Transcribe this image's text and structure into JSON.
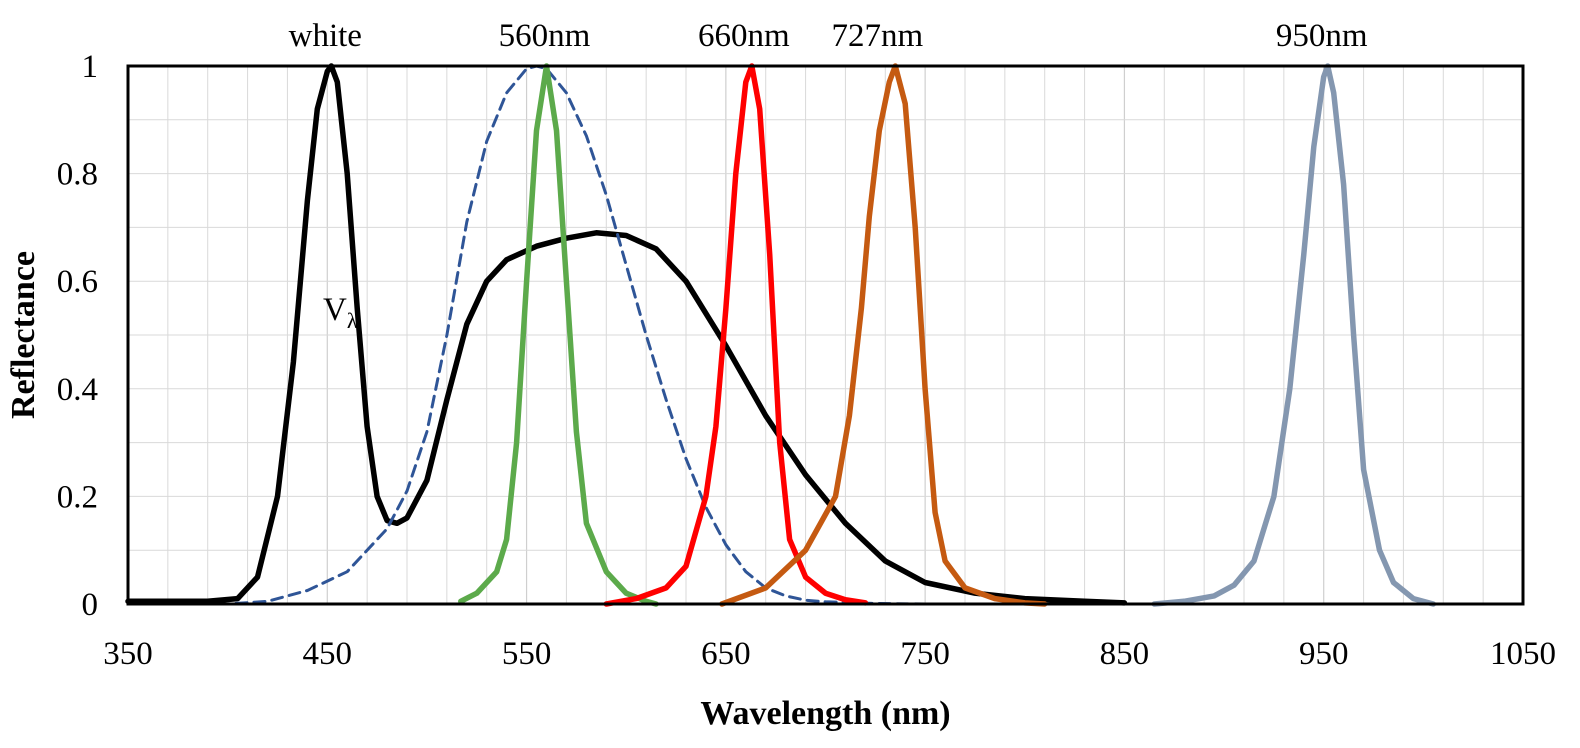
{
  "chart_data": {
    "type": "line",
    "title": "",
    "xlabel": "Wavelength (nm)",
    "ylabel": "Reflectance",
    "xlim": [
      350,
      1050
    ],
    "ylim": [
      0,
      1
    ],
    "x_ticks": [
      "350",
      "450",
      "550",
      "650",
      "750",
      "850",
      "950",
      "1050"
    ],
    "y_ticks": [
      "0",
      "0.2",
      "0.4",
      "0.6",
      "0.8",
      "1"
    ],
    "grid": true,
    "legend": "none",
    "peak_labels": [
      {
        "text": "white",
        "x": 450
      },
      {
        "text": "560nm",
        "x": 560
      },
      {
        "text": "660nm",
        "x": 660
      },
      {
        "text": "727nm",
        "x": 727
      },
      {
        "text": "950nm",
        "x": 950
      }
    ],
    "annotations": [
      {
        "text": "V",
        "subscript": "λ",
        "x": 483,
        "y": 0.55
      }
    ],
    "series": [
      {
        "name": "white",
        "color": "#000000",
        "dash": "solid",
        "points": [
          [
            350,
            0.005
          ],
          [
            390,
            0.005
          ],
          [
            405,
            0.01
          ],
          [
            415,
            0.05
          ],
          [
            425,
            0.2
          ],
          [
            433,
            0.45
          ],
          [
            440,
            0.75
          ],
          [
            445,
            0.92
          ],
          [
            450,
            0.99
          ],
          [
            452,
            1.0
          ],
          [
            455,
            0.97
          ],
          [
            460,
            0.8
          ],
          [
            465,
            0.55
          ],
          [
            470,
            0.33
          ],
          [
            475,
            0.2
          ],
          [
            480,
            0.155
          ],
          [
            485,
            0.15
          ],
          [
            490,
            0.16
          ],
          [
            500,
            0.23
          ],
          [
            510,
            0.38
          ],
          [
            520,
            0.52
          ],
          [
            530,
            0.6
          ],
          [
            540,
            0.64
          ],
          [
            555,
            0.665
          ],
          [
            570,
            0.68
          ],
          [
            585,
            0.69
          ],
          [
            600,
            0.685
          ],
          [
            615,
            0.66
          ],
          [
            630,
            0.6
          ],
          [
            650,
            0.48
          ],
          [
            670,
            0.35
          ],
          [
            690,
            0.24
          ],
          [
            710,
            0.15
          ],
          [
            730,
            0.08
          ],
          [
            750,
            0.04
          ],
          [
            775,
            0.02
          ],
          [
            800,
            0.01
          ],
          [
            830,
            0.005
          ],
          [
            850,
            0.002
          ]
        ]
      },
      {
        "name": "V-lambda",
        "color": "#2f5597",
        "dash": "dashed",
        "points": [
          [
            350,
            0.0
          ],
          [
            400,
            0.0
          ],
          [
            420,
            0.005
          ],
          [
            440,
            0.025
          ],
          [
            460,
            0.06
          ],
          [
            480,
            0.14
          ],
          [
            490,
            0.21
          ],
          [
            500,
            0.32
          ],
          [
            510,
            0.5
          ],
          [
            520,
            0.71
          ],
          [
            530,
            0.86
          ],
          [
            540,
            0.95
          ],
          [
            550,
            0.995
          ],
          [
            555,
            1.0
          ],
          [
            560,
            0.995
          ],
          [
            570,
            0.95
          ],
          [
            580,
            0.87
          ],
          [
            590,
            0.76
          ],
          [
            600,
            0.63
          ],
          [
            610,
            0.5
          ],
          [
            620,
            0.38
          ],
          [
            630,
            0.27
          ],
          [
            640,
            0.18
          ],
          [
            650,
            0.11
          ],
          [
            660,
            0.06
          ],
          [
            670,
            0.03
          ],
          [
            680,
            0.015
          ],
          [
            690,
            0.007
          ],
          [
            700,
            0.004
          ],
          [
            725,
            0.001
          ],
          [
            750,
            0.0
          ],
          [
            1050,
            0.0
          ]
        ]
      },
      {
        "name": "560nm",
        "color": "#5caa4b",
        "dash": "solid",
        "points": [
          [
            517,
            0.005
          ],
          [
            525,
            0.02
          ],
          [
            535,
            0.06
          ],
          [
            540,
            0.12
          ],
          [
            545,
            0.3
          ],
          [
            550,
            0.6
          ],
          [
            555,
            0.88
          ],
          [
            560,
            1.0
          ],
          [
            565,
            0.88
          ],
          [
            570,
            0.6
          ],
          [
            575,
            0.32
          ],
          [
            580,
            0.15
          ],
          [
            590,
            0.06
          ],
          [
            600,
            0.02
          ],
          [
            610,
            0.005
          ],
          [
            615,
            0.0
          ]
        ]
      },
      {
        "name": "660nm",
        "color": "#ff0000",
        "dash": "solid",
        "points": [
          [
            590,
            0.0
          ],
          [
            605,
            0.01
          ],
          [
            620,
            0.03
          ],
          [
            630,
            0.07
          ],
          [
            640,
            0.2
          ],
          [
            645,
            0.33
          ],
          [
            650,
            0.55
          ],
          [
            655,
            0.8
          ],
          [
            660,
            0.97
          ],
          [
            663,
            1.0
          ],
          [
            667,
            0.92
          ],
          [
            672,
            0.65
          ],
          [
            677,
            0.3
          ],
          [
            682,
            0.12
          ],
          [
            690,
            0.05
          ],
          [
            700,
            0.02
          ],
          [
            710,
            0.008
          ],
          [
            720,
            0.002
          ]
        ]
      },
      {
        "name": "727nm",
        "color": "#c55a11",
        "dash": "solid",
        "points": [
          [
            648,
            0.0
          ],
          [
            670,
            0.03
          ],
          [
            690,
            0.1
          ],
          [
            705,
            0.2
          ],
          [
            712,
            0.35
          ],
          [
            718,
            0.55
          ],
          [
            722,
            0.72
          ],
          [
            727,
            0.88
          ],
          [
            732,
            0.97
          ],
          [
            735,
            1.0
          ],
          [
            740,
            0.93
          ],
          [
            745,
            0.7
          ],
          [
            750,
            0.4
          ],
          [
            755,
            0.17
          ],
          [
            760,
            0.08
          ],
          [
            770,
            0.03
          ],
          [
            785,
            0.01
          ],
          [
            800,
            0.002
          ],
          [
            810,
            0.0
          ]
        ]
      },
      {
        "name": "950nm",
        "color": "#8497b0",
        "dash": "solid",
        "points": [
          [
            865,
            0.0
          ],
          [
            880,
            0.005
          ],
          [
            895,
            0.015
          ],
          [
            905,
            0.035
          ],
          [
            915,
            0.08
          ],
          [
            925,
            0.2
          ],
          [
            933,
            0.4
          ],
          [
            940,
            0.65
          ],
          [
            945,
            0.85
          ],
          [
            950,
            0.98
          ],
          [
            952,
            1.0
          ],
          [
            955,
            0.95
          ],
          [
            960,
            0.78
          ],
          [
            965,
            0.5
          ],
          [
            970,
            0.25
          ],
          [
            978,
            0.1
          ],
          [
            985,
            0.04
          ],
          [
            995,
            0.01
          ],
          [
            1005,
            0.0
          ]
        ]
      }
    ]
  }
}
